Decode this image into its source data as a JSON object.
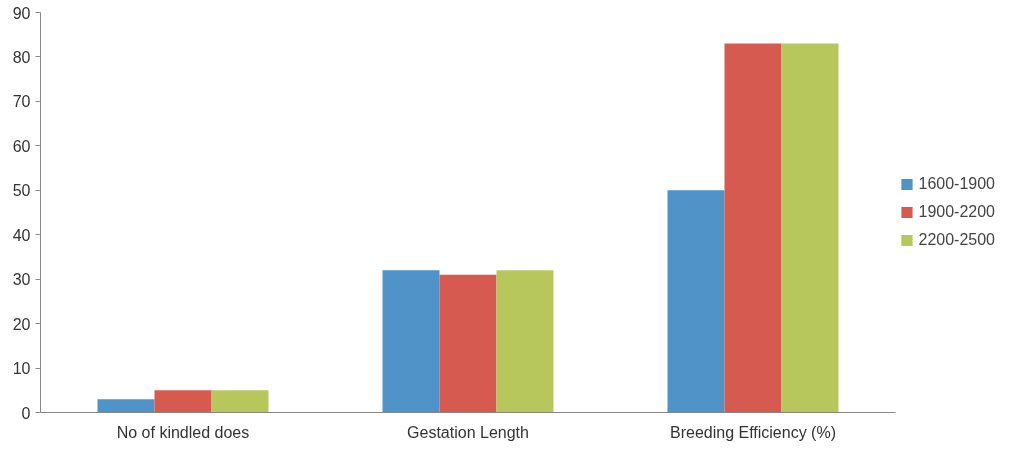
{
  "chart_data": {
    "type": "bar",
    "categories": [
      "No of kindled does",
      "Gestation Length",
      "Breeding Efficiency (%)"
    ],
    "series": [
      {
        "name": "1600-1900",
        "color": "#4f93c9",
        "values": [
          3,
          32,
          50
        ]
      },
      {
        "name": "1900-2200",
        "color": "#d75a50",
        "values": [
          5,
          31,
          83
        ]
      },
      {
        "name": "2200-2500",
        "color": "#b7c75b",
        "values": [
          5,
          32,
          83
        ]
      }
    ],
    "ylim": [
      0,
      90
    ],
    "yticks": [
      0,
      10,
      20,
      30,
      40,
      50,
      60,
      70,
      80,
      90
    ],
    "grid": false,
    "legend": "right"
  }
}
